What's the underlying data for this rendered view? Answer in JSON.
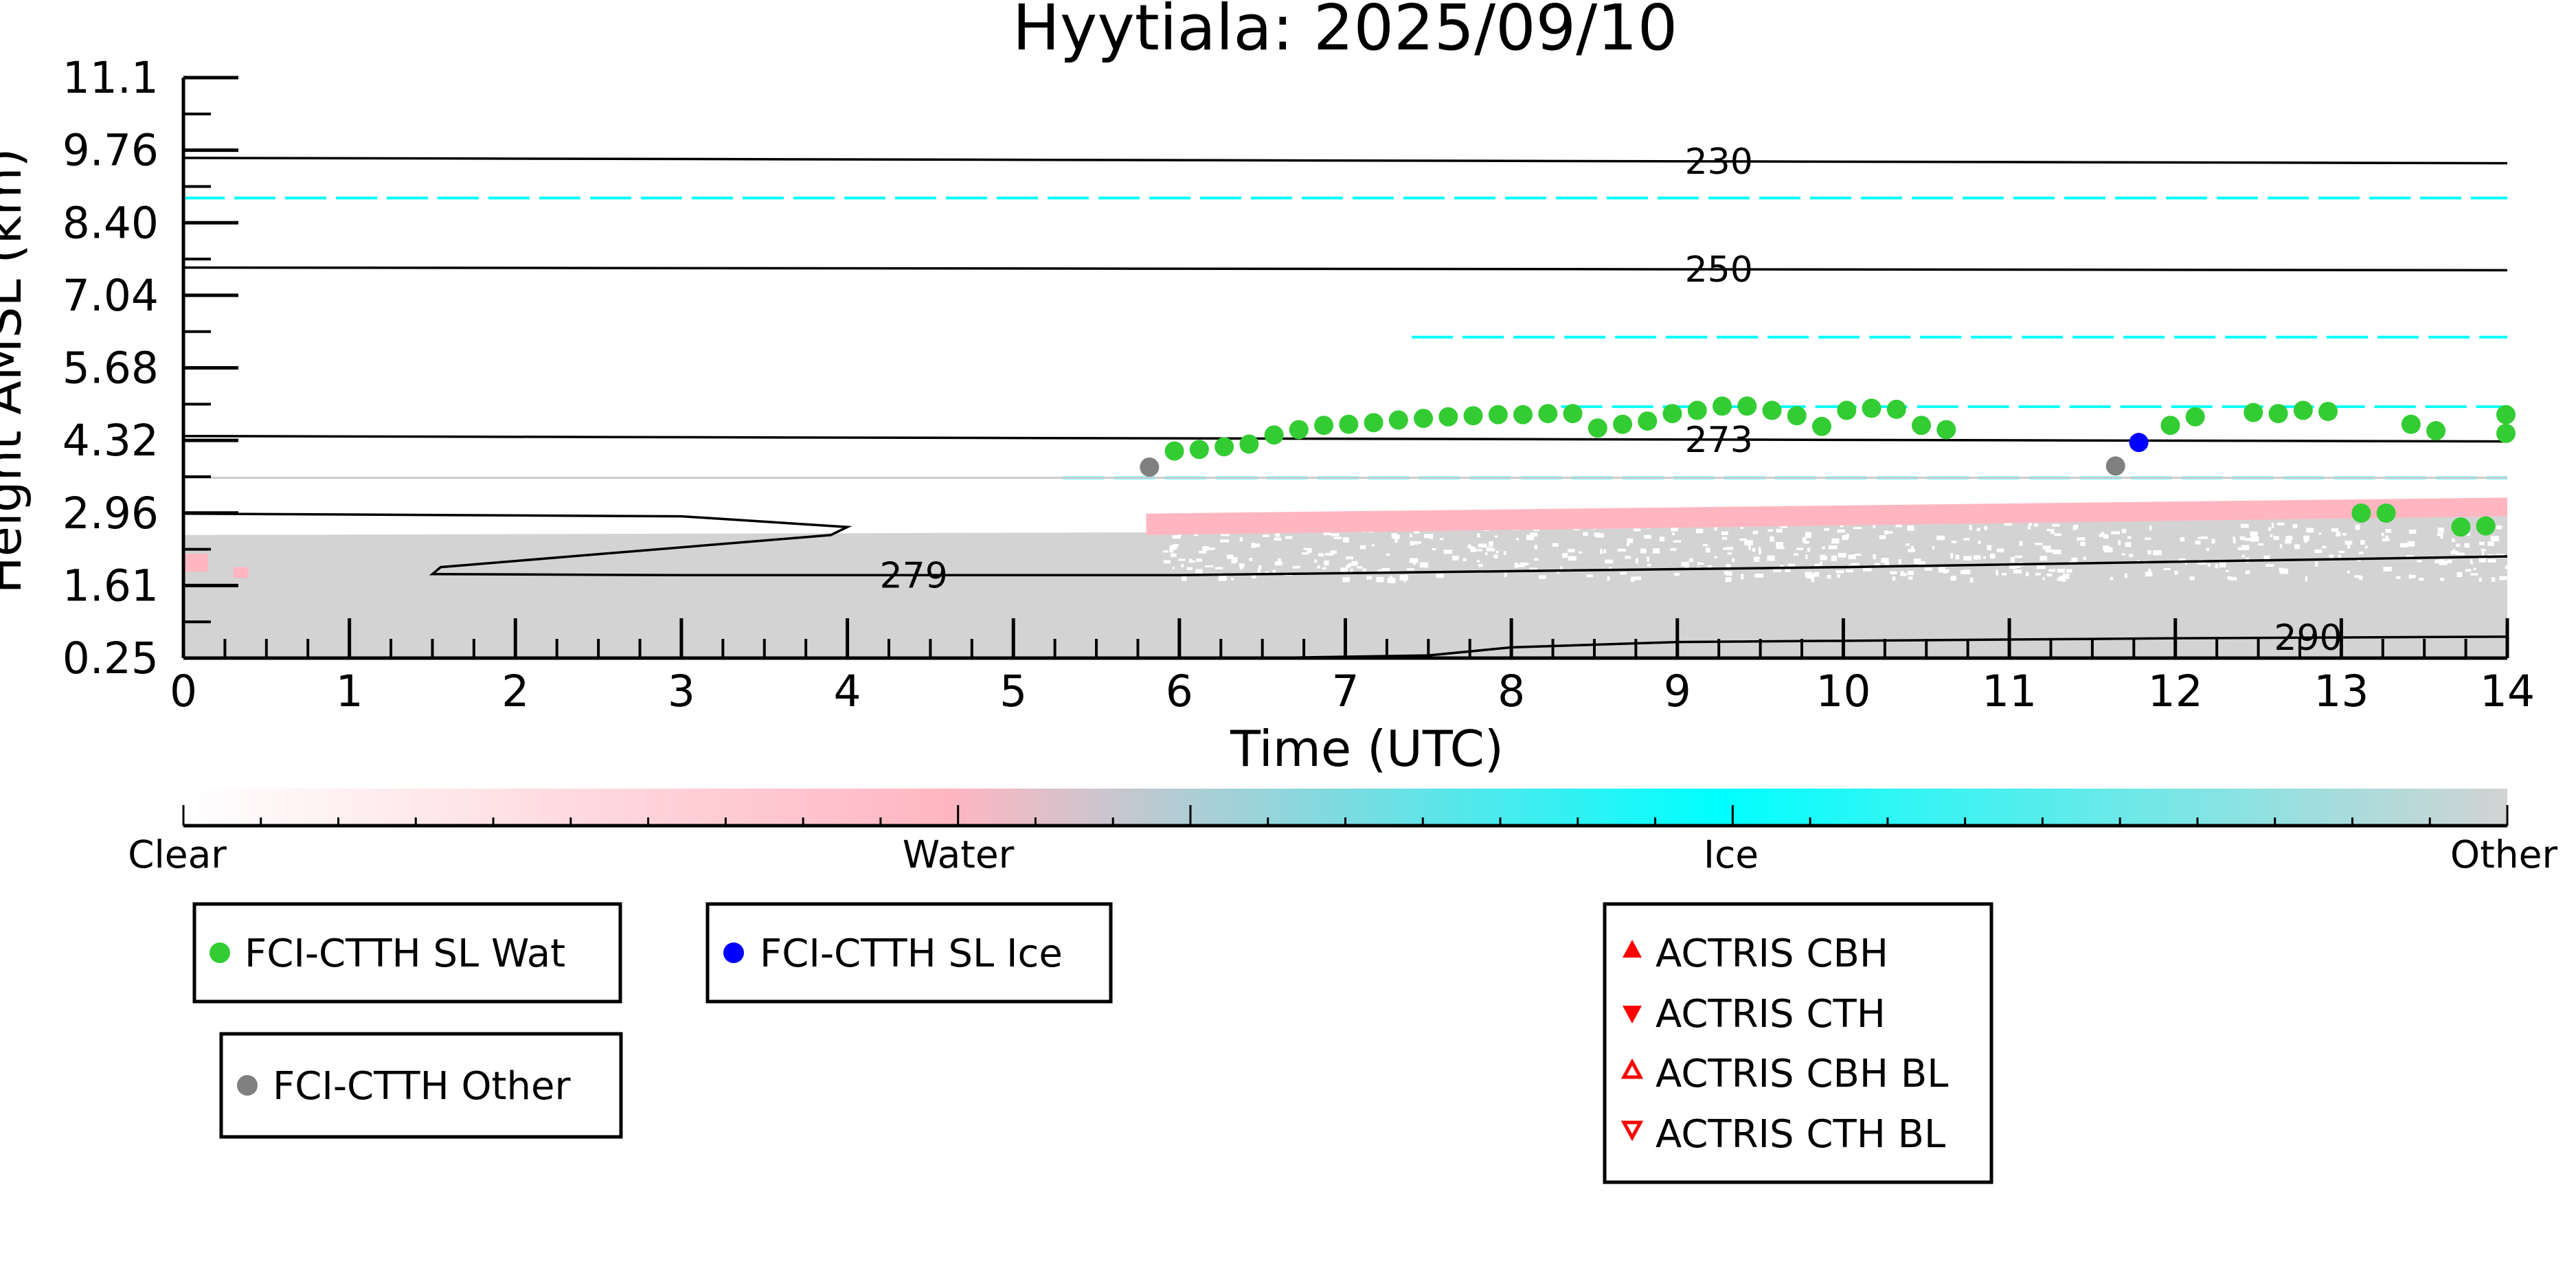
{
  "chart_data": {
    "type": "scatter",
    "title": "Hyytiala: 2025/09/10",
    "xlabel": "Time (UTC)",
    "ylabel": "Height AMSL (km)",
    "xlim": [
      0,
      14
    ],
    "ylim": [
      0.25,
      11.1
    ],
    "xticks": [
      "0",
      "1",
      "2",
      "3",
      "4",
      "5",
      "6",
      "7",
      "8",
      "9",
      "10",
      "11",
      "12",
      "13",
      "14"
    ],
    "yticks": [
      "0.25",
      "1.61",
      "2.96",
      "4.32",
      "5.68",
      "7.04",
      "8.40",
      "9.76",
      "11.1"
    ],
    "grid": false,
    "colorbar": {
      "labels": [
        "Clear",
        "Water",
        "Ice",
        "Other"
      ],
      "colors": [
        "#ffffff",
        "#ffb6c1",
        "#00ffff",
        "#d3d3d3"
      ]
    },
    "background": {
      "description_colors": {
        "other": "#d3d3d3",
        "water": "#ffb6c1",
        "ice": "#00ffff",
        "clear": "#ffffff"
      },
      "low_cloud_top_km": [
        [
          0,
          2.55
        ],
        [
          5.8,
          2.6
        ],
        [
          8.5,
          2.95
        ],
        [
          14,
          3.0
        ]
      ],
      "water_layer": [
        [
          5.8,
          2.55,
          2.95
        ],
        [
          14,
          2.9,
          3.25
        ]
      ],
      "ice_lines_km": [
        {
          "x": [
            0,
            14
          ],
          "y": 8.85
        },
        {
          "x": [
            5.3,
            14
          ],
          "y": 3.62
        },
        {
          "x": [
            8.3,
            14
          ],
          "y": 4.95
        },
        {
          "x": [
            7.4,
            14
          ],
          "y": 6.25
        }
      ]
    },
    "contours": [
      {
        "label": "230",
        "points": [
          [
            0,
            9.6
          ],
          [
            14,
            9.5
          ]
        ],
        "label_x": 9.25
      },
      {
        "label": "250",
        "points": [
          [
            0,
            7.55
          ],
          [
            14,
            7.5
          ]
        ],
        "label_x": 9.25
      },
      {
        "label": "273",
        "points": [
          [
            0,
            4.4
          ],
          [
            14,
            4.3
          ]
        ],
        "label_x": 9.25
      },
      {
        "label": "279",
        "points": [
          [
            0,
            2.95
          ],
          [
            3,
            2.9
          ],
          [
            4.0,
            2.7
          ],
          [
            3.9,
            2.55
          ],
          [
            1.55,
            1.95
          ],
          [
            1.5,
            1.82
          ],
          [
            3,
            1.8
          ],
          [
            6,
            1.8
          ],
          [
            10,
            1.95
          ],
          [
            14,
            2.15
          ]
        ],
        "label_x": 4.4
      },
      {
        "label": "290",
        "points": [
          [
            6.5,
            0.25
          ],
          [
            7.5,
            0.3
          ],
          [
            8,
            0.45
          ],
          [
            9,
            0.55
          ],
          [
            12,
            0.62
          ],
          [
            14,
            0.65
          ]
        ],
        "label_x": 12.8
      }
    ],
    "series": [
      {
        "name": "FCI-CTTH SL Wat",
        "color": "#33cc33",
        "marker": "circle",
        "points": [
          [
            5.97,
            4.12
          ],
          [
            6.12,
            4.15
          ],
          [
            6.27,
            4.2
          ],
          [
            6.42,
            4.25
          ],
          [
            6.57,
            4.42
          ],
          [
            6.72,
            4.52
          ],
          [
            6.87,
            4.6
          ],
          [
            7.02,
            4.62
          ],
          [
            7.17,
            4.65
          ],
          [
            7.32,
            4.7
          ],
          [
            7.47,
            4.73
          ],
          [
            7.62,
            4.76
          ],
          [
            7.77,
            4.78
          ],
          [
            7.92,
            4.8
          ],
          [
            8.07,
            4.8
          ],
          [
            8.22,
            4.82
          ],
          [
            8.37,
            4.82
          ],
          [
            8.52,
            4.55
          ],
          [
            8.67,
            4.62
          ],
          [
            8.82,
            4.68
          ],
          [
            8.97,
            4.82
          ],
          [
            9.12,
            4.88
          ],
          [
            9.27,
            4.96
          ],
          [
            9.42,
            4.96
          ],
          [
            9.57,
            4.88
          ],
          [
            9.72,
            4.78
          ],
          [
            9.87,
            4.58
          ],
          [
            10.02,
            4.88
          ],
          [
            10.17,
            4.92
          ],
          [
            10.32,
            4.9
          ],
          [
            10.47,
            4.6
          ],
          [
            10.62,
            4.52
          ],
          [
            11.97,
            4.6
          ],
          [
            12.12,
            4.76
          ],
          [
            12.47,
            4.84
          ],
          [
            12.62,
            4.82
          ],
          [
            12.77,
            4.88
          ],
          [
            12.92,
            4.86
          ],
          [
            13.12,
            2.96
          ],
          [
            13.27,
            2.96
          ],
          [
            13.42,
            4.62
          ],
          [
            13.57,
            4.5
          ],
          [
            13.72,
            2.7
          ],
          [
            13.87,
            2.72
          ],
          [
            14.02,
            4.45
          ],
          [
            14.17,
            4.8
          ]
        ]
      },
      {
        "name": "FCI-CTTH SL Ice",
        "color": "#0000ff",
        "marker": "circle",
        "points": [
          [
            11.78,
            4.28
          ]
        ]
      },
      {
        "name": "FCI-CTTH Other",
        "color": "#808080",
        "marker": "circle",
        "points": [
          [
            5.82,
            3.82
          ],
          [
            11.64,
            3.84
          ]
        ]
      },
      {
        "name": "ACTRIS CBH",
        "color": "#ff0000",
        "marker": "triangle-up-filled",
        "points": []
      },
      {
        "name": "ACTRIS CTH",
        "color": "#ff0000",
        "marker": "triangle-down-filled",
        "points": []
      },
      {
        "name": "ACTRIS CBH BL",
        "color": "#ff0000",
        "marker": "triangle-up-open",
        "points": []
      },
      {
        "name": "ACTRIS CTH BL",
        "color": "#ff0000",
        "marker": "triangle-down-open",
        "points": []
      }
    ],
    "legend": [
      {
        "label": "FCI-CTTH SL Wat",
        "color": "#33cc33",
        "marker": "circle"
      },
      {
        "label": "FCI-CTTH SL Ice",
        "color": "#0000ff",
        "marker": "circle"
      },
      {
        "label": "FCI-CTTH Other",
        "color": "#808080",
        "marker": "circle"
      },
      {
        "label": "ACTRIS CBH",
        "color": "#ff0000",
        "marker": "triangle-up-filled"
      },
      {
        "label": "ACTRIS CTH",
        "color": "#ff0000",
        "marker": "triangle-down-filled"
      },
      {
        "label": "ACTRIS CBH BL",
        "color": "#ff0000",
        "marker": "triangle-up-open"
      },
      {
        "label": "ACTRIS CTH BL",
        "color": "#ff0000",
        "marker": "triangle-down-open"
      }
    ]
  }
}
